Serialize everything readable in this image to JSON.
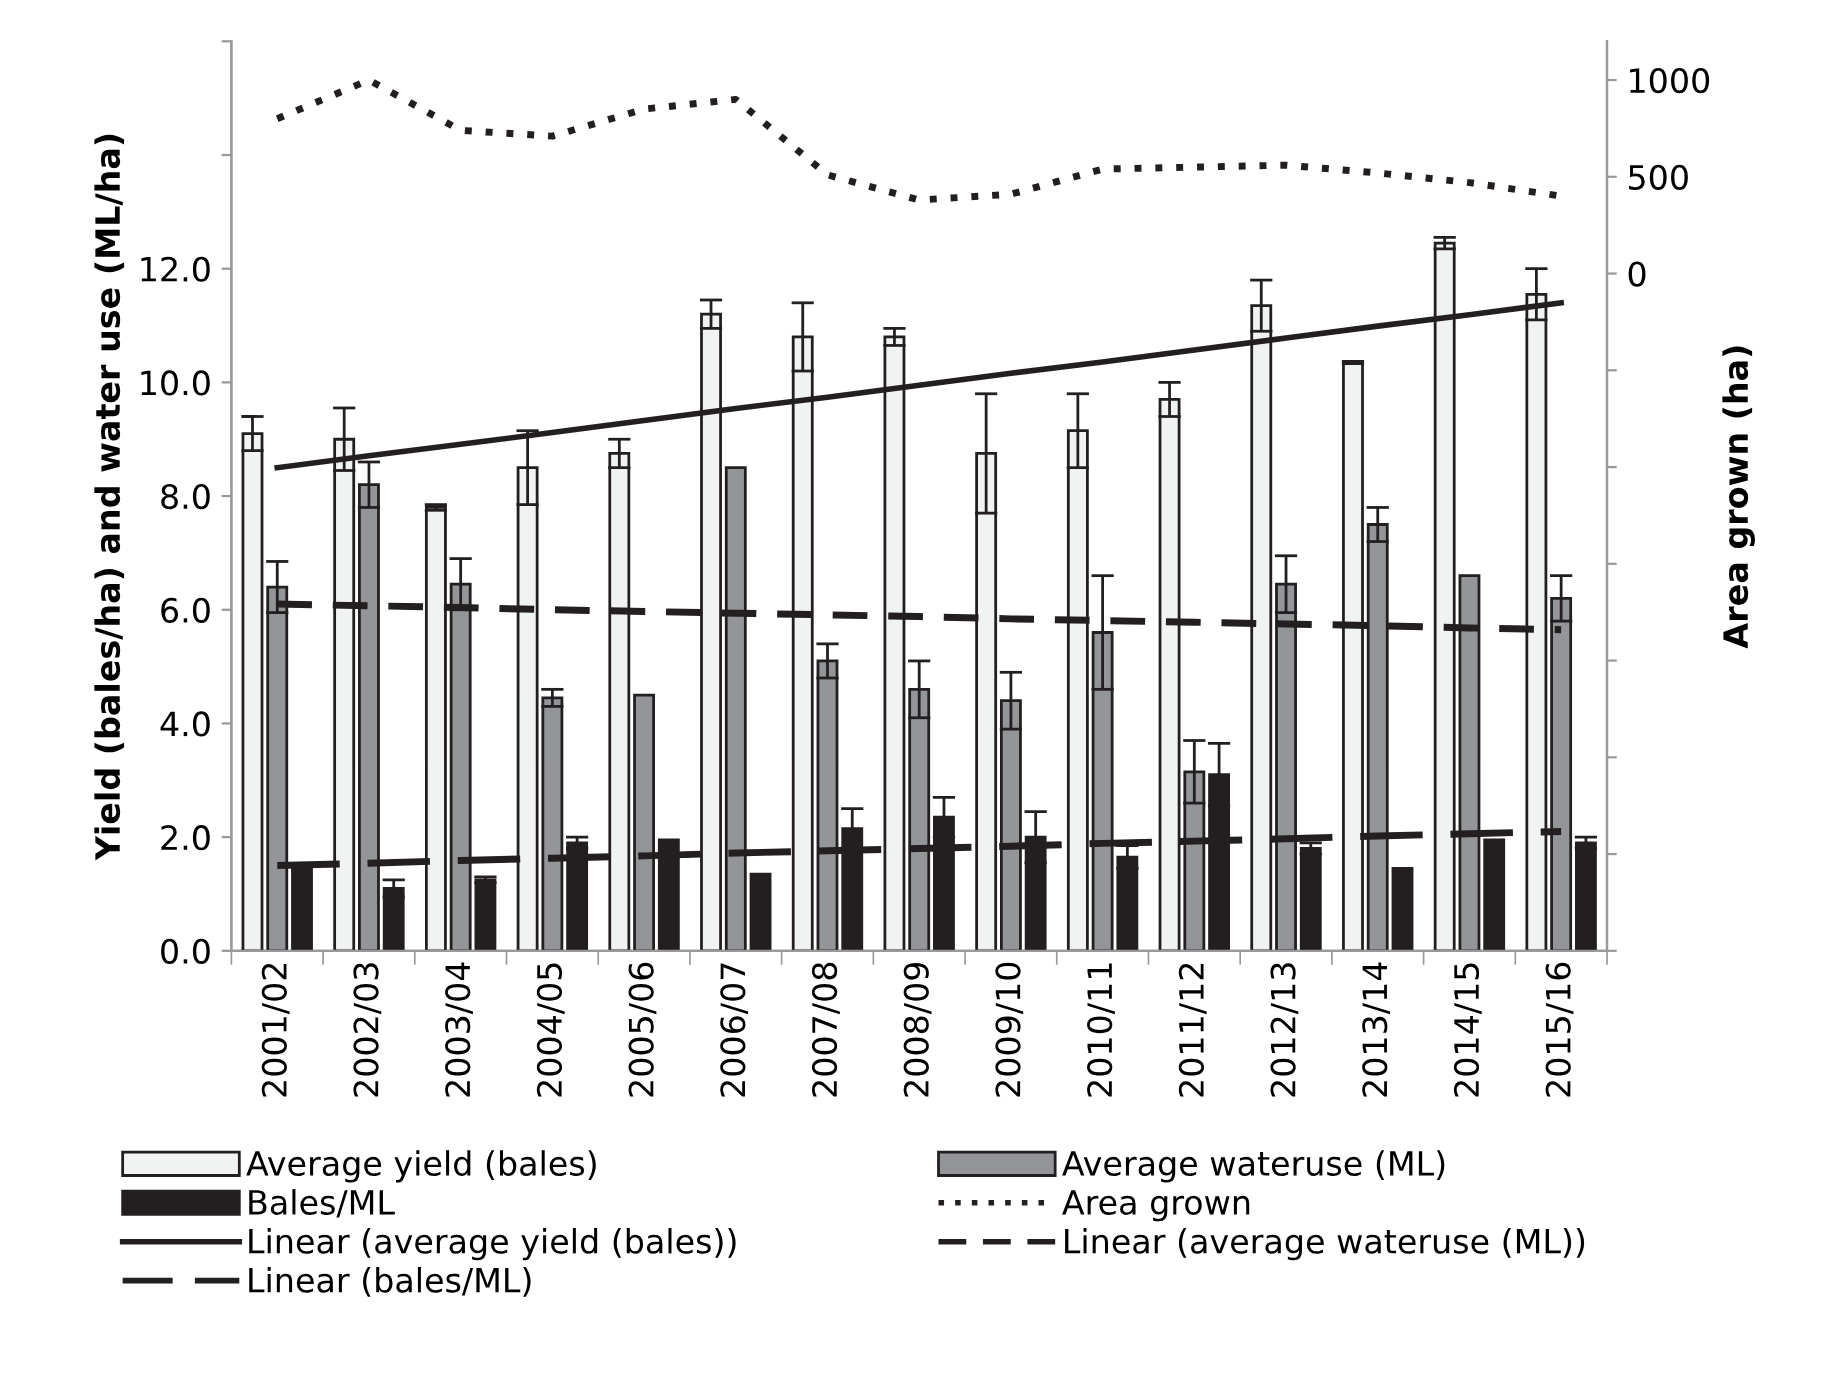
{
  "chart_data": {
    "type": "bar",
    "ylabel": "Yield (bales/ha) and water use (ML/ha)",
    "y2label": "Area grown (ha)",
    "categories": [
      "2001/02",
      "2002/03",
      "2003/04",
      "2004/05",
      "2005/06",
      "2006/07",
      "2007/08",
      "2008/09",
      "2009/10",
      "2010/11",
      "2011/12",
      "2012/13",
      "2013/14",
      "2014/15",
      "2015/16"
    ],
    "series": [
      {
        "name": "Average yield (bales)",
        "color": "#f1f2f2",
        "values": [
          9.1,
          9.0,
          7.8,
          8.5,
          8.75,
          11.2,
          10.8,
          10.8,
          8.75,
          9.15,
          9.7,
          11.35,
          10.35,
          12.45,
          11.55
        ],
        "errors": [
          0.3,
          0.55,
          0.05,
          0.65,
          0.25,
          0.25,
          0.6,
          0.15,
          1.05,
          0.65,
          0.3,
          0.45,
          0.02,
          0.1,
          0.45
        ]
      },
      {
        "name": "Average wateruse (ML)",
        "color": "#939598",
        "values": [
          6.4,
          8.2,
          6.45,
          4.45,
          4.5,
          8.5,
          5.1,
          4.6,
          4.4,
          5.6,
          3.15,
          6.45,
          7.5,
          6.6,
          6.2
        ],
        "errors": [
          0.45,
          0.4,
          0.45,
          0.15,
          null,
          null,
          0.3,
          0.5,
          0.5,
          1.0,
          0.55,
          0.5,
          0.3,
          null,
          0.4
        ]
      },
      {
        "name": "Bales/ML",
        "color": "#231f20",
        "values": [
          1.45,
          1.1,
          1.25,
          1.9,
          1.95,
          1.35,
          2.15,
          2.35,
          2.0,
          1.65,
          3.1,
          1.8,
          1.45,
          1.95,
          1.9
        ],
        "errors": [
          null,
          0.15,
          0.05,
          0.1,
          null,
          null,
          0.35,
          0.35,
          0.45,
          0.2,
          0.55,
          0.1,
          null,
          null,
          0.1
        ]
      },
      {
        "name": "Area grown",
        "type": "line",
        "axis": "y2",
        "color": "#231f20",
        "line_style": "dotted",
        "values": [
          800,
          1000,
          740,
          710,
          850,
          900,
          510,
          380,
          410,
          540,
          550,
          560,
          520,
          470,
          400
        ]
      },
      {
        "name": "Linear (average yield (bales))",
        "type": "line",
        "color": "#231f20",
        "line_style": "solid",
        "values": [
          8.5,
          8.71,
          8.91,
          9.12,
          9.33,
          9.54,
          9.74,
          9.95,
          10.16,
          10.36,
          10.57,
          10.78,
          10.99,
          11.19,
          11.4
        ]
      },
      {
        "name": "Linear (average wateruse (ML))",
        "type": "line",
        "color": "#231f20",
        "line_style": "dashed",
        "values": [
          6.1,
          6.07,
          6.04,
          6.0,
          5.97,
          5.94,
          5.91,
          5.88,
          5.84,
          5.81,
          5.78,
          5.75,
          5.72,
          5.68,
          5.65
        ]
      },
      {
        "name": "Linear (bales/ML)",
        "type": "line",
        "color": "#231f20",
        "line_style": "longdash",
        "values": [
          1.5,
          1.54,
          1.59,
          1.63,
          1.67,
          1.72,
          1.76,
          1.8,
          1.84,
          1.89,
          1.93,
          1.97,
          2.02,
          2.06,
          2.1
        ]
      }
    ],
    "ylim": [
      0,
      16
    ],
    "yticks": [
      {
        "value": 0,
        "label": "0.0"
      },
      {
        "value": 2,
        "label": "2.0"
      },
      {
        "value": 4,
        "label": "4.0"
      },
      {
        "value": 6,
        "label": "6.0"
      },
      {
        "value": 8,
        "label": "8.0"
      },
      {
        "value": 10,
        "label": "10.0"
      },
      {
        "value": 12,
        "label": "12.0"
      },
      {
        "value": 14,
        "label": null
      },
      {
        "value": 16,
        "label": null
      }
    ],
    "y2lim": [
      -3500,
      1200
    ],
    "y2ticks": [
      {
        "value": -3500,
        "label": null
      },
      {
        "value": -3000,
        "label": null
      },
      {
        "value": -2500,
        "label": null
      },
      {
        "value": -2000,
        "label": null
      },
      {
        "value": -1500,
        "label": null
      },
      {
        "value": -1000,
        "label": null
      },
      {
        "value": -500,
        "label": null
      },
      0,
      500,
      1000
    ],
    "grid": false,
    "legend": "bottom"
  }
}
